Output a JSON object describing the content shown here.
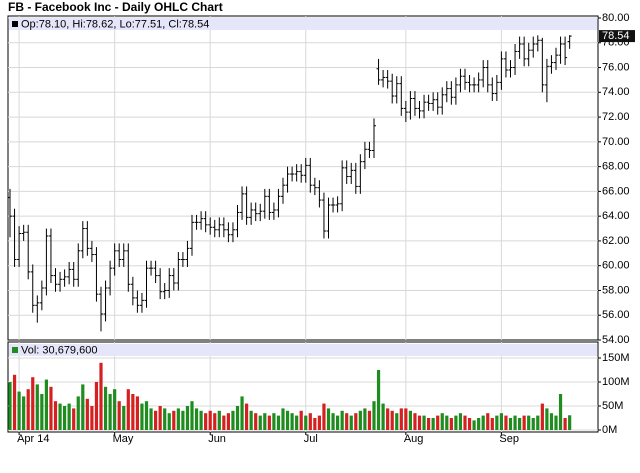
{
  "chart_data": [
    {
      "type": "ohlc",
      "title": "FB - Facebook Inc - Daily OHLC Chart",
      "header": "Op:78.10, Hi:78.62, Lo:77.51, Cl:78.54",
      "last_label": "78.54",
      "color": "#000000",
      "header_color": "#e6e6fa",
      "open": [
        65.5,
        64.0,
        60.5,
        62.6,
        62.7,
        59.5,
        56.8,
        57.0,
        58.2,
        62.4,
        59.2,
        58.5,
        58.9,
        59.1,
        59.7,
        58.9,
        61.2,
        63.0,
        61.4,
        60.9,
        57.7,
        56.1,
        58.2,
        59.8,
        61.2,
        60.5,
        61.2,
        58.5,
        57.4,
        56.8,
        57.2,
        59.8,
        59.8,
        59.2,
        57.9,
        58.0,
        59.2,
        58.6,
        60.5,
        60.5,
        61.4,
        63.5,
        63.5,
        63.8,
        63.3,
        63.1,
        62.9,
        63.3,
        62.9,
        62.5,
        62.9,
        64.3,
        65.8,
        63.9,
        64.5,
        64.2,
        64.4,
        65.6,
        64.3,
        64.5,
        65.6,
        66.5,
        67.4,
        67.4,
        67.6,
        67.3,
        68.1,
        66.5,
        66.3,
        65.3,
        62.8,
        64.9,
        64.9,
        65.0,
        67.9,
        67.2,
        67.7,
        66.4,
        68.4,
        69.4,
        69.3,
        75.9,
        75.0,
        75.2,
        74.9,
        73.7,
        74.7,
        72.7,
        72.4,
        73.5,
        72.7,
        72.5,
        73.2,
        73.1,
        73.4,
        72.8,
        73.8,
        74.3,
        73.6,
        74.6,
        75.3,
        74.8,
        74.6,
        74.6,
        75.0,
        76.0,
        74.6,
        73.9,
        74.8,
        76.7,
        75.8,
        76.0,
        77.3,
        77.9,
        76.7,
        77.4,
        77.9,
        78.2,
        74.6,
        76.1,
        76.4,
        77.0,
        77.9,
        78.1
      ],
      "high": [
        66.2,
        64.6,
        63.2,
        63.3,
        63.3,
        60.1,
        57.6,
        58.8,
        63.0,
        63.0,
        59.8,
        59.5,
        59.7,
        60.3,
        60.3,
        61.8,
        63.6,
        63.6,
        62.0,
        61.5,
        58.3,
        58.8,
        60.4,
        61.8,
        61.8,
        61.8,
        61.8,
        59.1,
        58.0,
        57.8,
        60.4,
        60.4,
        60.4,
        59.8,
        58.6,
        59.8,
        59.8,
        61.1,
        61.1,
        62.0,
        64.1,
        64.1,
        64.4,
        64.4,
        63.9,
        63.7,
        63.9,
        63.9,
        63.5,
        63.5,
        64.9,
        66.4,
        66.4,
        65.1,
        65.1,
        65.0,
        66.2,
        66.2,
        65.1,
        66.2,
        67.1,
        68.0,
        68.0,
        68.2,
        68.2,
        68.7,
        68.7,
        67.1,
        66.9,
        65.9,
        65.5,
        65.5,
        65.6,
        68.5,
        68.5,
        68.3,
        68.3,
        69.0,
        70.0,
        70.0,
        71.9,
        76.7,
        75.8,
        75.8,
        75.5,
        75.3,
        75.3,
        73.3,
        74.1,
        74.1,
        73.3,
        73.8,
        73.8,
        74.0,
        74.0,
        74.4,
        74.9,
        74.9,
        75.2,
        75.9,
        75.9,
        75.4,
        75.2,
        75.6,
        76.6,
        76.6,
        75.2,
        75.4,
        77.3,
        77.3,
        76.6,
        77.9,
        78.5,
        78.5,
        78.0,
        78.5,
        78.6,
        78.4,
        76.7,
        77.0,
        77.6,
        78.5,
        78.5,
        78.62
      ],
      "low": [
        62.3,
        59.9,
        59.9,
        62.0,
        58.9,
        56.2,
        55.4,
        56.4,
        57.6,
        58.6,
        57.9,
        57.9,
        58.3,
        58.5,
        58.3,
        58.3,
        60.6,
        60.8,
        60.3,
        57.1,
        54.7,
        55.5,
        57.6,
        59.2,
        59.9,
        59.9,
        57.9,
        56.8,
        56.2,
        56.2,
        56.6,
        59.2,
        58.6,
        57.3,
        57.3,
        57.4,
        58.0,
        58.0,
        59.9,
        59.9,
        60.8,
        62.9,
        62.9,
        62.7,
        62.5,
        62.3,
        62.3,
        62.3,
        61.9,
        61.9,
        62.3,
        63.7,
        63.3,
        63.3,
        63.6,
        63.6,
        63.8,
        63.7,
        63.7,
        63.9,
        65.0,
        65.9,
        66.8,
        66.8,
        66.7,
        66.7,
        65.9,
        65.7,
        64.7,
        62.2,
        62.2,
        64.3,
        64.3,
        64.4,
        66.6,
        66.6,
        65.8,
        65.8,
        67.8,
        68.7,
        68.7,
        74.6,
        74.4,
        74.3,
        73.1,
        73.1,
        72.1,
        71.6,
        71.8,
        72.1,
        71.9,
        71.9,
        72.5,
        72.5,
        72.2,
        72.2,
        73.2,
        73.0,
        73.0,
        74.0,
        74.2,
        74.0,
        74.0,
        74.0,
        74.4,
        74.0,
        73.3,
        73.3,
        74.2,
        75.2,
        75.2,
        75.4,
        76.7,
        76.1,
        76.1,
        76.8,
        77.3,
        74.0,
        73.2,
        75.5,
        75.8,
        76.3,
        76.2,
        77.51
      ],
      "close": [
        64.0,
        60.5,
        62.6,
        62.7,
        59.5,
        56.8,
        57.0,
        58.2,
        62.4,
        59.2,
        58.5,
        58.9,
        59.1,
        59.7,
        58.9,
        61.2,
        63.0,
        61.4,
        60.9,
        57.7,
        56.1,
        58.2,
        59.8,
        61.2,
        60.5,
        61.2,
        58.5,
        57.4,
        56.8,
        57.2,
        59.8,
        59.8,
        59.2,
        57.9,
        58.0,
        59.2,
        58.6,
        60.5,
        60.5,
        61.4,
        63.5,
        63.5,
        63.8,
        63.3,
        63.1,
        62.9,
        63.3,
        62.9,
        62.5,
        62.9,
        64.3,
        65.8,
        63.9,
        64.5,
        64.2,
        64.4,
        65.6,
        64.3,
        64.5,
        65.6,
        66.5,
        67.4,
        67.4,
        67.6,
        67.3,
        68.1,
        66.5,
        66.3,
        65.3,
        62.8,
        64.9,
        64.9,
        65.0,
        67.9,
        67.2,
        67.7,
        66.4,
        68.4,
        69.4,
        69.3,
        71.3,
        75.0,
        75.2,
        74.9,
        73.7,
        74.7,
        72.7,
        72.4,
        73.5,
        72.7,
        72.5,
        73.2,
        73.1,
        73.4,
        72.8,
        73.8,
        74.3,
        73.6,
        74.6,
        75.3,
        74.8,
        74.6,
        74.6,
        75.0,
        76.0,
        74.6,
        73.9,
        74.8,
        76.7,
        75.8,
        76.0,
        77.3,
        77.9,
        76.7,
        77.4,
        77.9,
        78.2,
        74.6,
        76.1,
        76.4,
        77.0,
        77.9,
        76.8,
        78.54
      ],
      "ylim": [
        54,
        80
      ],
      "yticks": [
        {
          "value": 54,
          "label": "54.00"
        },
        {
          "value": 56,
          "label": "56.00"
        },
        {
          "value": 58,
          "label": "58.00"
        },
        {
          "value": 60,
          "label": "60.00"
        },
        {
          "value": 62,
          "label": "62.00"
        },
        {
          "value": 64,
          "label": "64.00"
        },
        {
          "value": 66,
          "label": "66.00"
        },
        {
          "value": 68,
          "label": "68.00"
        },
        {
          "value": 70,
          "label": "70.00"
        },
        {
          "value": 72,
          "label": "72.00"
        },
        {
          "value": 74,
          "label": "74.00"
        },
        {
          "value": 76,
          "label": "76.00"
        },
        {
          "value": 78,
          "label": "78.00"
        },
        {
          "value": 80,
          "label": "80.00"
        }
      ],
      "grid": true
    },
    {
      "type": "bar",
      "header": "Vol: 30,679,600",
      "up_color": "#1e8c1e",
      "down_color": "#d42020",
      "header_color": "#e6e6fa",
      "categories": [
        null,
        null,
        "Apr 14",
        null,
        null,
        null,
        null,
        null,
        null,
        null,
        null,
        null,
        null,
        null,
        null,
        null,
        null,
        null,
        null,
        null,
        null,
        null,
        null,
        "May",
        null,
        null,
        null,
        null,
        null,
        null,
        null,
        null,
        null,
        null,
        null,
        null,
        null,
        null,
        null,
        null,
        null,
        null,
        null,
        null,
        "Jun",
        null,
        null,
        null,
        null,
        null,
        null,
        null,
        null,
        null,
        null,
        null,
        null,
        null,
        null,
        null,
        null,
        null,
        null,
        null,
        null,
        "Jul",
        null,
        null,
        null,
        null,
        null,
        null,
        null,
        null,
        null,
        null,
        null,
        null,
        null,
        null,
        null,
        null,
        null,
        null,
        null,
        null,
        null,
        "Aug",
        null,
        null,
        null,
        null,
        null,
        null,
        null,
        null,
        null,
        null,
        null,
        null,
        null,
        null,
        null,
        null,
        null,
        null,
        null,
        null,
        "Sep",
        null,
        null,
        null,
        null,
        null,
        null,
        null,
        null,
        null,
        null,
        null,
        null,
        null,
        null,
        null
      ],
      "values": [
        100,
        115,
        80,
        70,
        85,
        110,
        95,
        75,
        105,
        90,
        60,
        55,
        50,
        55,
        45,
        70,
        95,
        65,
        50,
        100,
        140,
        90,
        75,
        85,
        60,
        50,
        85,
        75,
        70,
        55,
        60,
        45,
        40,
        50,
        45,
        35,
        40,
        45,
        40,
        50,
        60,
        45,
        40,
        35,
        40,
        35,
        40,
        30,
        35,
        40,
        50,
        70,
        55,
        40,
        35,
        30,
        35,
        30,
        35,
        30,
        45,
        40,
        35,
        30,
        40,
        30,
        35,
        25,
        30,
        55,
        45,
        35,
        30,
        40,
        35,
        30,
        35,
        40,
        45,
        40,
        60,
        125,
        55,
        45,
        40,
        35,
        45,
        45,
        40,
        35,
        30,
        30,
        25,
        25,
        30,
        35,
        30,
        25,
        30,
        35,
        30,
        25,
        20,
        25,
        30,
        35,
        25,
        30,
        35,
        30,
        25,
        30,
        25,
        30,
        30,
        25,
        30,
        55,
        45,
        35,
        30,
        75,
        25,
        30.6796
      ],
      "ylim": [
        0,
        150
      ],
      "yticks": [
        {
          "value": 0,
          "label": "0M"
        },
        {
          "value": 50,
          "label": "50M"
        },
        {
          "value": 100,
          "label": "100M"
        },
        {
          "value": 150,
          "label": "150M"
        }
      ],
      "grid": true
    }
  ]
}
